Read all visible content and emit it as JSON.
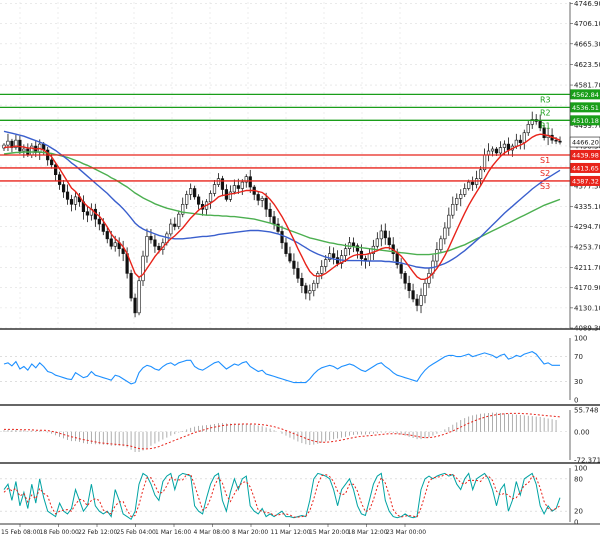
{
  "chart_data": {
    "type": "candlestick",
    "main": {
      "ylim": [
        4089.3,
        4750.0
      ],
      "y_ticks": [
        "4746.90",
        "4706.10",
        "4665.30",
        "4623.50",
        "4581.70",
        "4540.90",
        "4499.70",
        "4458.30",
        "4417.50",
        "4377.30",
        "4335.10",
        "4294.70",
        "4253.70",
        "4211.70",
        "4170.90",
        "4130.10",
        "4089.30"
      ],
      "current_price": "4466.20",
      "levels": [
        {
          "name": "R3",
          "value": 4562.84,
          "label": "4562.84",
          "color": "#1a9e1a"
        },
        {
          "name": "R2",
          "value": 4536.51,
          "label": "4536.51",
          "color": "#1a9e1a"
        },
        {
          "name": "R1",
          "value": 4510.18,
          "label": "4510.18",
          "color": "#1a9e1a"
        },
        {
          "name": "S1",
          "value": 4439.98,
          "label": "4439.98",
          "color": "#e8231a"
        },
        {
          "name": "S2",
          "value": 4413.65,
          "label": "4413.65",
          "color": "#e8231a"
        },
        {
          "name": "S3",
          "value": 4387.32,
          "label": "4387.32",
          "color": "#e8231a"
        }
      ],
      "close": [
        4460,
        4468,
        4455,
        4470,
        4448,
        4452,
        4440,
        4458,
        4445,
        4462,
        4450,
        4430,
        4420,
        4400,
        4380,
        4365,
        4350,
        4340,
        4355,
        4345,
        4325,
        4318,
        4330,
        4310,
        4300,
        4285,
        4270,
        4255,
        4262,
        4250,
        4240,
        4200,
        4150,
        4120,
        4185,
        4235,
        4275,
        4268,
        4255,
        4248,
        4262,
        4280,
        4300,
        4295,
        4320,
        4340,
        4360,
        4372,
        4355,
        4340,
        4330,
        4345,
        4362,
        4380,
        4392,
        4370,
        4350,
        4365,
        4378,
        4372,
        4385,
        4396,
        4375,
        4360,
        4348,
        4352,
        4330,
        4315,
        4300,
        4285,
        4262,
        4240,
        4225,
        4210,
        4190,
        4175,
        4160,
        4165,
        4180,
        4200,
        4214,
        4228,
        4240,
        4232,
        4220,
        4236,
        4250,
        4262,
        4256,
        4245,
        4230,
        4225,
        4240,
        4255,
        4270,
        4286,
        4272,
        4258,
        4240,
        4218,
        4200,
        4180,
        4165,
        4148,
        4135,
        4155,
        4180,
        4200,
        4225,
        4248,
        4270,
        4292,
        4318,
        4340,
        4352,
        4360,
        4372,
        4385,
        4380,
        4392,
        4410,
        4440,
        4448,
        4452,
        4444,
        4455,
        4462,
        4450,
        4458,
        4470,
        4465,
        4485,
        4502,
        4512,
        4508,
        4495,
        4475,
        4480,
        4470,
        4468,
        4466
      ],
      "sma_fast": [
        4455,
        4456,
        4456,
        4458,
        4457,
        4456,
        4454,
        4454,
        4452,
        4453,
        4450,
        4444,
        4436,
        4424,
        4412,
        4399,
        4386,
        4373,
        4366,
        4356,
        4344,
        4336,
        4330,
        4322,
        4316,
        4306,
        4294,
        4280,
        4270,
        4263,
        4254,
        4240,
        4220,
        4200,
        4192,
        4198,
        4210,
        4222,
        4234,
        4244,
        4253,
        4262,
        4270,
        4276,
        4284,
        4292,
        4302,
        4312,
        4320,
        4328,
        4334,
        4338,
        4342,
        4348,
        4355,
        4358,
        4359,
        4361,
        4362,
        4364,
        4366,
        4368,
        4368,
        4368,
        4366,
        4364,
        4358,
        4350,
        4340,
        4328,
        4315,
        4300,
        4284,
        4268,
        4250,
        4234,
        4218,
        4204,
        4196,
        4194,
        4196,
        4200,
        4206,
        4212,
        4218,
        4222,
        4226,
        4232,
        4236,
        4238,
        4238,
        4238,
        4240,
        4243,
        4246,
        4250,
        4252,
        4252,
        4248,
        4242,
        4235,
        4225,
        4214,
        4203,
        4193,
        4188,
        4188,
        4192,
        4200,
        4210,
        4222,
        4236,
        4252,
        4270,
        4288,
        4305,
        4322,
        4338,
        4352,
        4365,
        4378,
        4392,
        4406,
        4418,
        4428,
        4437,
        4444,
        4449,
        4453,
        4457,
        4460,
        4464,
        4470,
        4476,
        4480,
        4482,
        4481,
        4479,
        4476,
        4473,
        4470
      ],
      "sma_mid": [
        4488,
        4486,
        4484,
        4482,
        4480,
        4478,
        4475,
        4472,
        4469,
        4466,
        4463,
        4459,
        4454,
        4449,
        4443,
        4437,
        4431,
        4424,
        4418,
        4411,
        4404,
        4397,
        4390,
        4383,
        4376,
        4369,
        4362,
        4354,
        4346,
        4339,
        4331,
        4322,
        4312,
        4302,
        4295,
        4290,
        4286,
        4283,
        4280,
        4277,
        4275,
        4273,
        4271,
        4270,
        4270,
        4270,
        4271,
        4272,
        4273,
        4274,
        4275,
        4275,
        4276,
        4277,
        4279,
        4280,
        4281,
        4282,
        4283,
        4284,
        4285,
        4286,
        4287,
        4287,
        4287,
        4286,
        4285,
        4284,
        4282,
        4280,
        4277,
        4274,
        4270,
        4266,
        4262,
        4257,
        4252,
        4247,
        4243,
        4239,
        4236,
        4233,
        4231,
        4229,
        4228,
        4227,
        4226,
        4226,
        4226,
        4226,
        4226,
        4225,
        4225,
        4225,
        4225,
        4225,
        4224,
        4224,
        4223,
        4222,
        4221,
        4219,
        4217,
        4215,
        4213,
        4212,
        4211,
        4211,
        4212,
        4214,
        4217,
        4220,
        4224,
        4229,
        4234,
        4240,
        4246,
        4253,
        4260,
        4267,
        4274,
        4282,
        4290,
        4298,
        4306,
        4314,
        4322,
        4329,
        4336,
        4343,
        4350,
        4357,
        4364,
        4371,
        4377,
        4383,
        4389,
        4394,
        4399,
        4404,
        4409
      ],
      "sma_slow": [
        4442,
        4443,
        4444,
        4445,
        4445,
        4446,
        4446,
        4446,
        4446,
        4446,
        4445,
        4444,
        4443,
        4441,
        4439,
        4437,
        4435,
        4432,
        4429,
        4426,
        4422,
        4419,
        4415,
        4411,
        4407,
        4403,
        4399,
        4394,
        4390,
        4385,
        4380,
        4375,
        4369,
        4363,
        4358,
        4353,
        4349,
        4345,
        4341,
        4338,
        4335,
        4332,
        4330,
        4328,
        4326,
        4324,
        4323,
        4322,
        4321,
        4320,
        4319,
        4318,
        4318,
        4317,
        4317,
        4316,
        4316,
        4315,
        4315,
        4314,
        4313,
        4312,
        4311,
        4310,
        4308,
        4306,
        4304,
        4302,
        4299,
        4296,
        4293,
        4290,
        4287,
        4284,
        4281,
        4278,
        4275,
        4272,
        4270,
        4268,
        4266,
        4264,
        4262,
        4261,
        4259,
        4258,
        4256,
        4255,
        4254,
        4253,
        4252,
        4251,
        4250,
        4249,
        4248,
        4247,
        4246,
        4245,
        4244,
        4243,
        4242,
        4241,
        4240,
        4239,
        4238,
        4238,
        4238,
        4238,
        4239,
        4240,
        4242,
        4244,
        4246,
        4249,
        4252,
        4255,
        4258,
        4262,
        4266,
        4270,
        4274,
        4278,
        4282,
        4286,
        4290,
        4294,
        4298,
        4302,
        4306,
        4310,
        4314,
        4318,
        4322,
        4326,
        4330,
        4334,
        4338,
        4341,
        4344,
        4347,
        4350
      ]
    },
    "rsi": {
      "ylim": [
        0,
        100
      ],
      "y_ticks": [
        "100",
        "70",
        "30",
        "0"
      ],
      "values": [
        58,
        60,
        55,
        62,
        50,
        54,
        48,
        58,
        52,
        60,
        54,
        46,
        44,
        40,
        38,
        36,
        34,
        33,
        44,
        40,
        36,
        38,
        46,
        40,
        38,
        36,
        34,
        32,
        40,
        38,
        34,
        30,
        26,
        28,
        44,
        52,
        56,
        54,
        50,
        48,
        54,
        58,
        60,
        56,
        60,
        62,
        64,
        64,
        54,
        50,
        48,
        52,
        56,
        60,
        62,
        56,
        50,
        54,
        58,
        56,
        60,
        62,
        54,
        50,
        46,
        48,
        42,
        40,
        38,
        36,
        34,
        32,
        30,
        28,
        28,
        28,
        28,
        34,
        42,
        48,
        52,
        54,
        56,
        54,
        50,
        54,
        56,
        58,
        56,
        52,
        48,
        46,
        50,
        54,
        58,
        60,
        54,
        50,
        44,
        40,
        38,
        36,
        34,
        32,
        30,
        40,
        48,
        54,
        58,
        62,
        66,
        70,
        72,
        72,
        70,
        70,
        72,
        74,
        70,
        72,
        74,
        76,
        74,
        72,
        68,
        72,
        74,
        66,
        68,
        72,
        70,
        74,
        76,
        78,
        74,
        66,
        58,
        60,
        56,
        56,
        56
      ]
    },
    "macd": {
      "ylim": [
        -72.371,
        55.748
      ],
      "y_ticks": [
        "55.748",
        "0.00",
        "-72.371"
      ],
      "histogram": [
        4,
        5,
        4,
        5,
        3,
        4,
        2,
        3,
        2,
        3,
        1,
        -2,
        -5,
        -9,
        -13,
        -17,
        -21,
        -24,
        -24,
        -26,
        -29,
        -31,
        -31,
        -32,
        -32,
        -33,
        -34,
        -36,
        -36,
        -36,
        -37,
        -40,
        -46,
        -52,
        -52,
        -48,
        -42,
        -36,
        -30,
        -25,
        -20,
        -15,
        -10,
        -6,
        -2,
        2,
        6,
        10,
        13,
        15,
        16,
        17,
        18,
        20,
        22,
        22,
        21,
        21,
        21,
        21,
        21,
        21,
        20,
        18,
        16,
        14,
        11,
        8,
        4,
        0,
        -5,
        -10,
        -15,
        -20,
        -25,
        -29,
        -32,
        -34,
        -33,
        -31,
        -28,
        -25,
        -22,
        -19,
        -17,
        -15,
        -13,
        -10,
        -8,
        -7,
        -7,
        -7,
        -6,
        -5,
        -4,
        -2,
        -2,
        -2,
        -3,
        -5,
        -7,
        -10,
        -13,
        -16,
        -19,
        -19,
        -17,
        -14,
        -10,
        -5,
        0,
        6,
        12,
        18,
        24,
        30,
        35,
        39,
        42,
        44,
        46,
        47,
        48,
        49,
        49,
        48,
        47,
        46,
        45,
        44,
        43,
        42,
        41,
        40,
        39,
        38,
        36,
        34,
        32,
        30
      ],
      "signal": [
        6,
        6,
        6,
        6,
        5,
        5,
        5,
        5,
        4,
        4,
        4,
        3,
        1,
        -1,
        -4,
        -7,
        -10,
        -13,
        -15,
        -18,
        -20,
        -22,
        -24,
        -26,
        -28,
        -29,
        -30,
        -31,
        -32,
        -33,
        -34,
        -35,
        -37,
        -40,
        -43,
        -44,
        -44,
        -43,
        -41,
        -38,
        -34,
        -30,
        -26,
        -22,
        -18,
        -14,
        -10,
        -6,
        -2,
        1,
        4,
        7,
        10,
        12,
        14,
        16,
        17,
        18,
        19,
        19,
        20,
        20,
        20,
        20,
        19,
        18,
        17,
        15,
        13,
        10,
        7,
        3,
        -1,
        -5,
        -9,
        -13,
        -17,
        -21,
        -24,
        -26,
        -27,
        -27,
        -26,
        -25,
        -23,
        -21,
        -19,
        -17,
        -15,
        -13,
        -12,
        -11,
        -10,
        -9,
        -8,
        -7,
        -6,
        -5,
        -5,
        -5,
        -6,
        -7,
        -8,
        -10,
        -12,
        -14,
        -15,
        -15,
        -14,
        -12,
        -9,
        -6,
        -2,
        2,
        7,
        12,
        17,
        22,
        26,
        30,
        34,
        37,
        40,
        42,
        44,
        45,
        46,
        47,
        47,
        47,
        47,
        46,
        46,
        45,
        44,
        43,
        42,
        41,
        40,
        39,
        38
      ],
      "line_color": "#e8231a",
      "bar_color": "#9a9a9a"
    },
    "stochastic": {
      "ylim": [
        0,
        100
      ],
      "y_ticks": [
        "100",
        "80",
        "20",
        "0"
      ],
      "k": [
        60,
        70,
        40,
        75,
        30,
        55,
        25,
        70,
        35,
        80,
        45,
        20,
        15,
        10,
        35,
        20,
        15,
        25,
        60,
        40,
        20,
        30,
        70,
        30,
        20,
        15,
        20,
        10,
        60,
        40,
        15,
        10,
        5,
        20,
        70,
        90,
        85,
        70,
        50,
        40,
        75,
        85,
        90,
        60,
        85,
        90,
        88,
        85,
        30,
        20,
        15,
        45,
        70,
        85,
        90,
        40,
        20,
        55,
        80,
        60,
        80,
        85,
        30,
        20,
        15,
        25,
        10,
        15,
        10,
        15,
        20,
        10,
        10,
        8,
        10,
        12,
        10,
        40,
        80,
        90,
        88,
        85,
        80,
        60,
        30,
        60,
        70,
        80,
        60,
        30,
        15,
        12,
        40,
        70,
        85,
        90,
        40,
        20,
        10,
        8,
        10,
        15,
        10,
        8,
        10,
        60,
        80,
        85,
        80,
        85,
        88,
        90,
        85,
        88,
        70,
        60,
        80,
        90,
        60,
        80,
        85,
        90,
        80,
        60,
        30,
        60,
        70,
        20,
        40,
        75,
        50,
        80,
        85,
        90,
        70,
        30,
        15,
        30,
        20,
        25,
        45
      ],
      "d": [
        55,
        62,
        58,
        62,
        48,
        53,
        37,
        50,
        43,
        62,
        53,
        48,
        27,
        15,
        20,
        22,
        23,
        20,
        33,
        42,
        40,
        30,
        40,
        43,
        40,
        22,
        18,
        15,
        30,
        37,
        38,
        22,
        10,
        12,
        32,
        60,
        82,
        82,
        68,
        53,
        55,
        67,
        83,
        78,
        78,
        78,
        88,
        88,
        68,
        45,
        22,
        27,
        43,
        67,
        82,
        72,
        50,
        38,
        52,
        65,
        73,
        75,
        65,
        45,
        22,
        20,
        17,
        17,
        12,
        13,
        15,
        15,
        13,
        9,
        9,
        10,
        11,
        21,
        43,
        70,
        86,
        88,
        84,
        75,
        57,
        50,
        53,
        70,
        70,
        57,
        35,
        19,
        22,
        41,
        65,
        82,
        72,
        50,
        23,
        13,
        9,
        11,
        12,
        11,
        9,
        26,
        50,
        75,
        82,
        83,
        84,
        88,
        88,
        88,
        81,
        73,
        70,
        77,
        77,
        77,
        75,
        85,
        85,
        77,
        57,
        50,
        53,
        50,
        43,
        45,
        55,
        68,
        72,
        85,
        82,
        63,
        38,
        25,
        22,
        25,
        30
      ],
      "k_color": "#00a3a3",
      "d_color": "#e8231a"
    },
    "x_ticks": [
      "15 Feb 08:00",
      "18 Feb 00:00",
      "22 Feb 12:00",
      "25 Feb 04:00",
      "1 Mar 16:00",
      "4 Mar 08:00",
      "8 Mar 20:00",
      "11 Mar 12:00",
      "15 Mar 20:00",
      "18 Mar 12:00",
      "23 Mar 00:00"
    ]
  }
}
